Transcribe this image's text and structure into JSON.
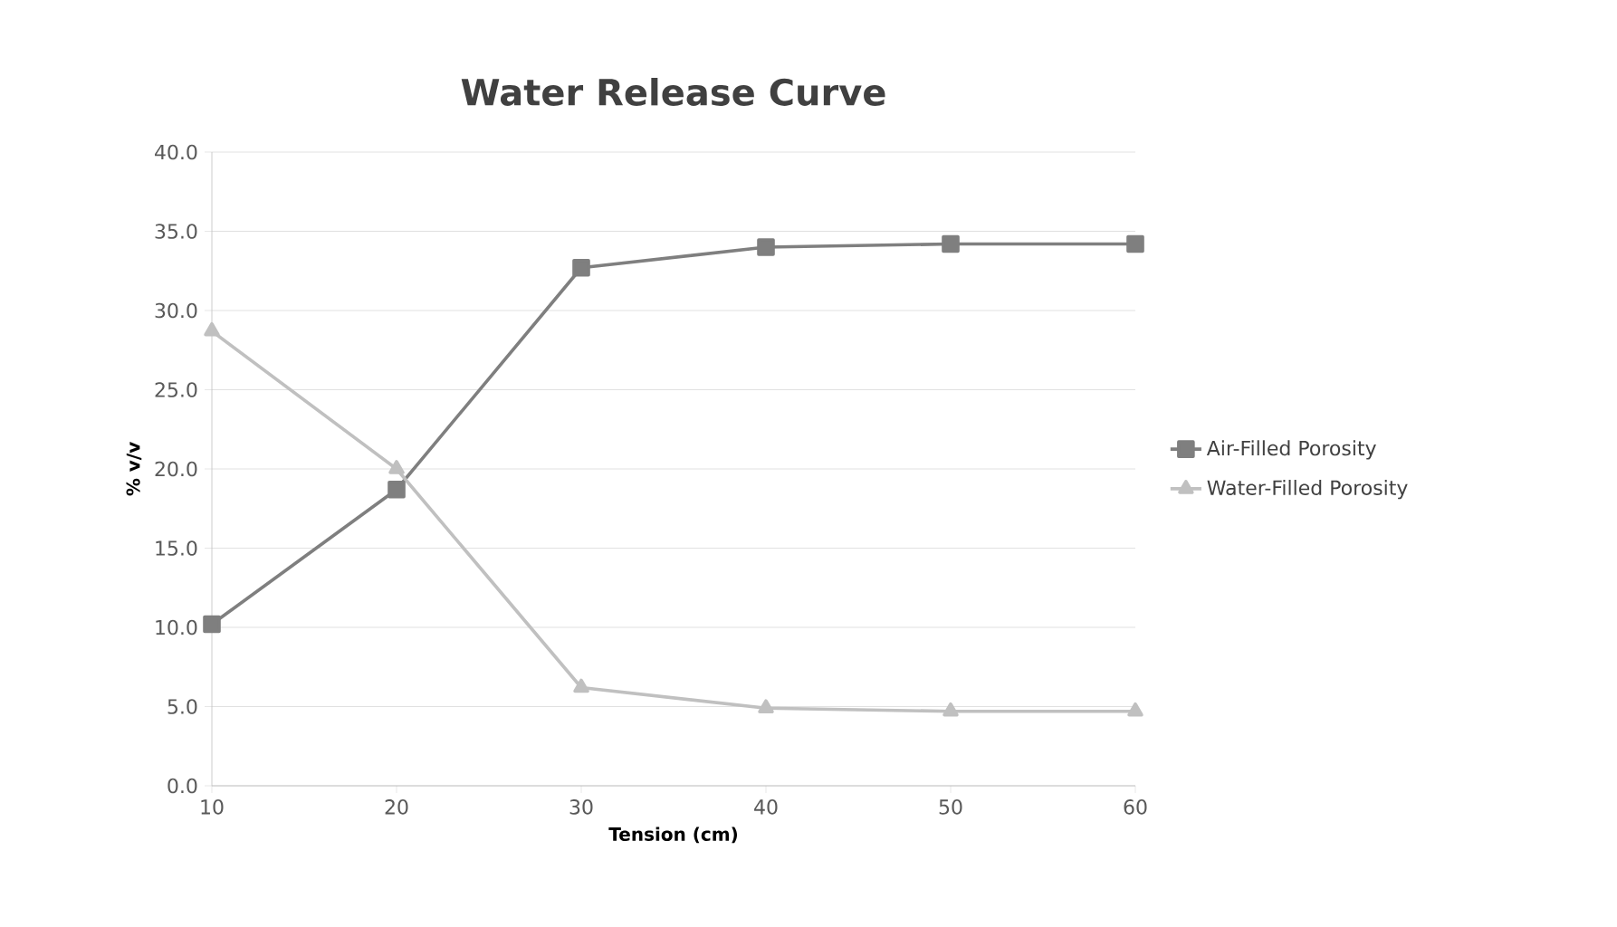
{
  "chart_data": {
    "type": "line",
    "title": "Water Release Curve",
    "xlabel": "Tension (cm)",
    "ylabel": "% v/v",
    "x": [
      10,
      20,
      30,
      40,
      50,
      60
    ],
    "series": [
      {
        "name": "Air-Filled Porosity",
        "color": "#7f7f7f",
        "marker": "square",
        "values": [
          10.2,
          18.7,
          32.7,
          34.0,
          34.2,
          34.2
        ]
      },
      {
        "name": "Water-Filled Porosity",
        "color": "#c0c0c0",
        "marker": "triangle",
        "values": [
          28.7,
          20.0,
          6.2,
          4.9,
          4.7,
          4.7
        ]
      }
    ],
    "xlim": [
      10,
      60
    ],
    "xticks": [
      10,
      20,
      30,
      40,
      50,
      60
    ],
    "ylim": [
      0,
      40
    ],
    "yticks": [
      {
        "value": 0,
        "label": "0.0"
      },
      {
        "value": 5,
        "label": "5.0"
      },
      {
        "value": 10,
        "label": "10.0"
      },
      {
        "value": 15,
        "label": "15.0"
      },
      {
        "value": 20,
        "label": "20.0"
      },
      {
        "value": 25,
        "label": "25.0"
      },
      {
        "value": 30,
        "label": "30.0"
      },
      {
        "value": 35,
        "label": "35.0"
      },
      {
        "value": 40,
        "label": "40.0"
      }
    ],
    "grid": "y",
    "legend": "right",
    "line_style": "solid"
  }
}
